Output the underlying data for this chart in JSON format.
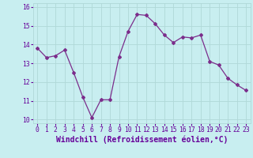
{
  "x": [
    0,
    1,
    2,
    3,
    4,
    5,
    6,
    7,
    8,
    9,
    10,
    11,
    12,
    13,
    14,
    15,
    16,
    17,
    18,
    19,
    20,
    21,
    22,
    23
  ],
  "y": [
    13.8,
    13.3,
    13.4,
    13.7,
    12.5,
    11.2,
    10.1,
    11.05,
    11.05,
    13.35,
    14.7,
    15.6,
    15.55,
    15.1,
    14.5,
    14.1,
    14.4,
    14.35,
    14.5,
    13.1,
    12.9,
    12.2,
    11.85,
    11.55
  ],
  "line_color": "#7B2D8B",
  "marker": "D",
  "marker_size": 2,
  "bg_color": "#C8EEF0",
  "grid_color": "#B0D8D8",
  "xlabel": "Windchill (Refroidissement éolien,°C)",
  "ylim": [
    9.8,
    16.2
  ],
  "xlim": [
    -0.5,
    23.5
  ],
  "yticks": [
    10,
    11,
    12,
    13,
    14,
    15,
    16
  ],
  "xticks": [
    0,
    1,
    2,
    3,
    4,
    5,
    6,
    7,
    8,
    9,
    10,
    11,
    12,
    13,
    14,
    15,
    16,
    17,
    18,
    19,
    20,
    21,
    22,
    23
  ],
  "tick_color": "#660099",
  "tick_fontsize": 5.8,
  "xlabel_fontsize": 7.0,
  "xlabel_color": "#660099"
}
